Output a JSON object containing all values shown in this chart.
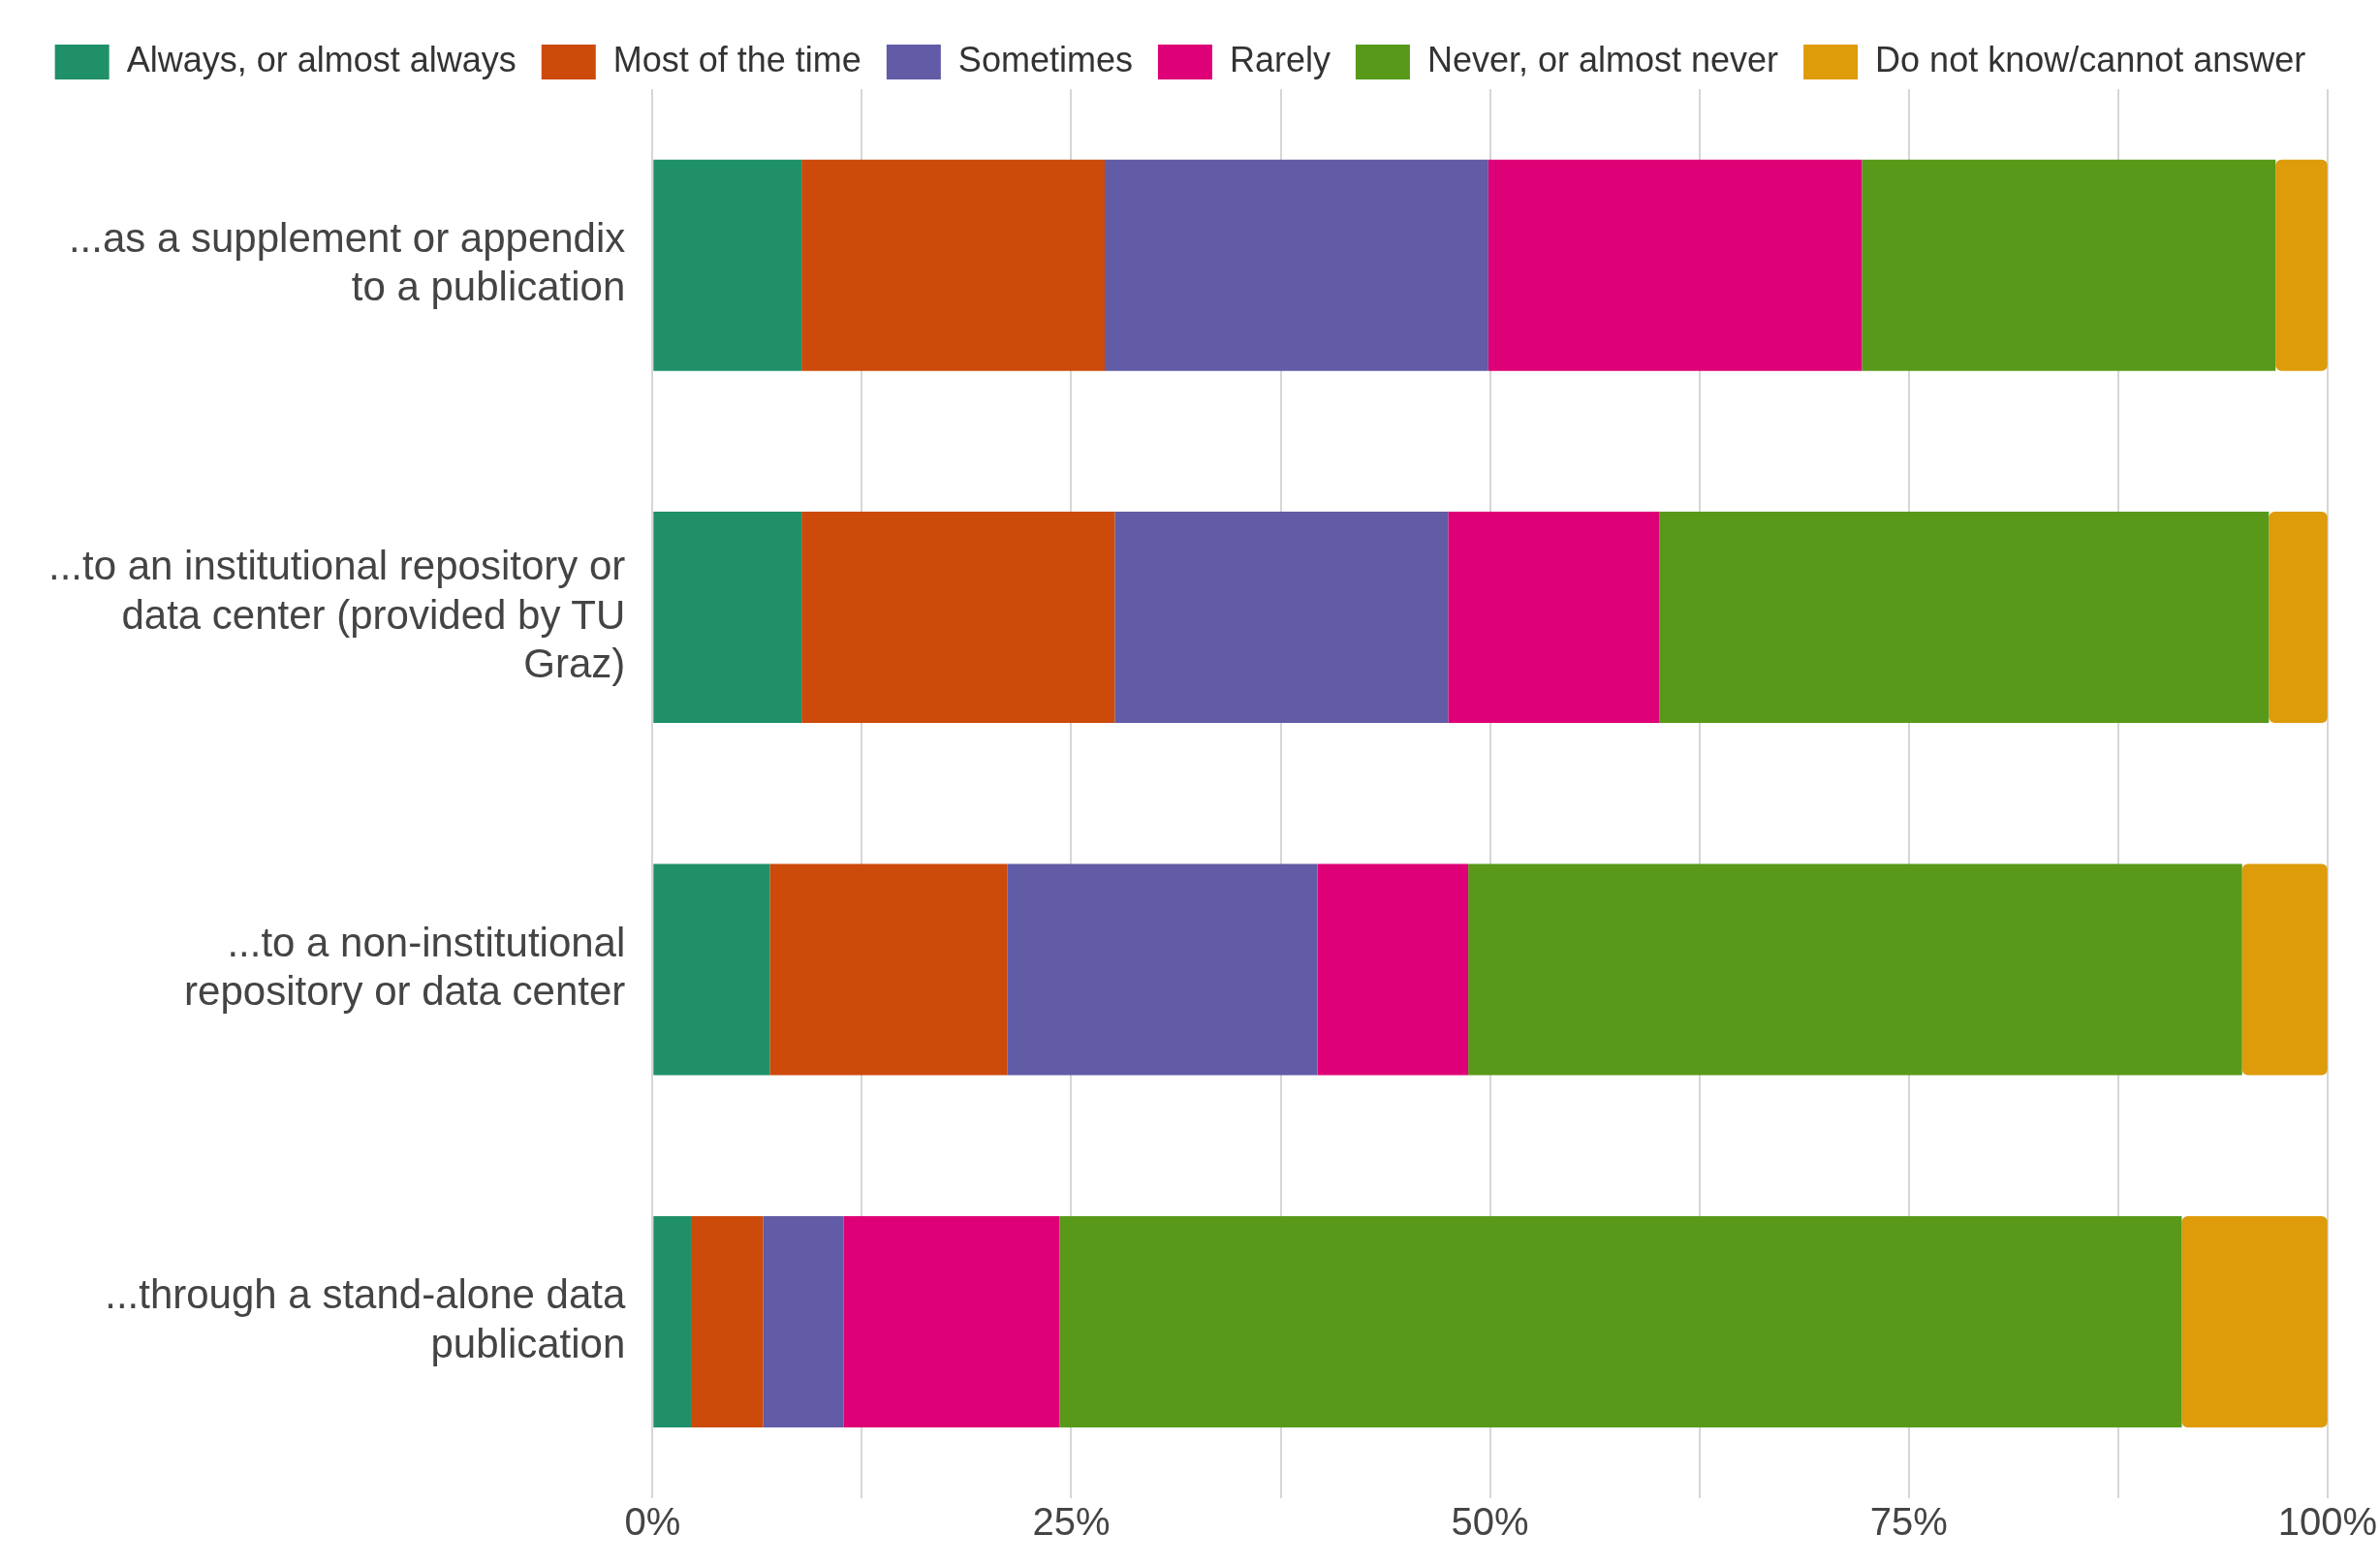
{
  "chart_data": {
    "type": "bar",
    "orientation": "horizontal",
    "stacked": true,
    "categories": [
      "...as a supplement or appendix to a publication",
      "...to an institutional repository or data center (provided by TU Graz)",
      "...to a non-institutional repository or data center",
      "...through a stand-alone data publication"
    ],
    "series": [
      {
        "name": "Always, or almost always",
        "color": "#1f9068",
        "values": [
          8.9,
          8.9,
          7.0,
          2.3
        ]
      },
      {
        "name": "Most of the time",
        "color": "#cc4a0a",
        "values": [
          18.1,
          18.7,
          14.2,
          4.3
        ]
      },
      {
        "name": "Sometimes",
        "color": "#625ba6",
        "values": [
          22.9,
          19.9,
          18.5,
          4.8
        ]
      },
      {
        "name": "Rarely",
        "color": "#de0077",
        "values": [
          22.3,
          12.6,
          9.0,
          12.9
        ]
      },
      {
        "name": "Never, or almost never",
        "color": "#58991a",
        "values": [
          24.7,
          36.4,
          46.2,
          67.0
        ]
      },
      {
        "name": "Do not know/cannot answer",
        "color": "#de9b0a",
        "values": [
          3.1,
          3.5,
          5.1,
          8.7
        ]
      }
    ],
    "xlim": [
      0,
      100
    ],
    "xticks": [
      {
        "value": 0,
        "label": "0%"
      },
      {
        "value": 12.5,
        "label": null
      },
      {
        "value": 25,
        "label": "25%"
      },
      {
        "value": 37.5,
        "label": null
      },
      {
        "value": 50,
        "label": "50%"
      },
      {
        "value": 62.5,
        "label": null
      },
      {
        "value": 75,
        "label": "75%"
      },
      {
        "value": 87.5,
        "label": null
      },
      {
        "value": 100,
        "label": "100%"
      }
    ],
    "grid": "x",
    "legend": "top"
  }
}
